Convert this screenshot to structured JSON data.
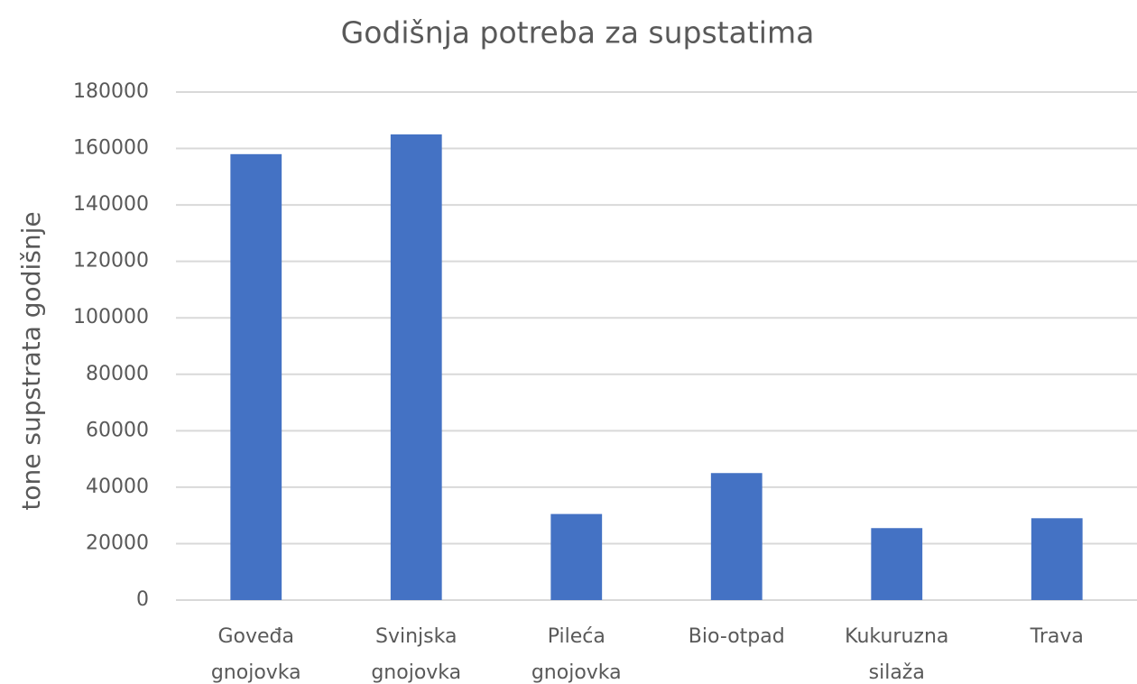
{
  "chart_data": {
    "type": "bar",
    "title": "Godišnja potreba za supstatima",
    "y_label": "tone supstrata godišnje",
    "categories": [
      "Goveđa gnojovka",
      "Svinjska gnojovka",
      "Pileća gnojovka",
      "Bio-otpad",
      "Kukuruzna silaža",
      "Trava"
    ],
    "values": [
      158000,
      165000,
      30500,
      45000,
      25500,
      29000
    ],
    "color": "#4472c4",
    "ylim": [
      0,
      180000
    ],
    "yticks": [
      0,
      20000,
      40000,
      60000,
      80000,
      100000,
      120000,
      140000,
      160000,
      180000
    ],
    "grid": true
  }
}
